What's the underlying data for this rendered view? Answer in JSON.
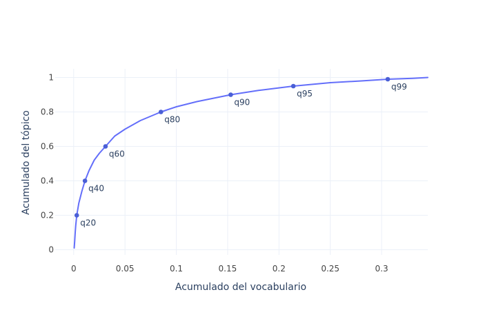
{
  "chart_data": {
    "type": "line",
    "xlabel": "Acumulado del vocabulario",
    "ylabel": "Acumulado del tópico",
    "xlim": [
      -0.018,
      0.345
    ],
    "ylim": [
      -0.03,
      1.05
    ],
    "x_ticks": [
      0,
      0.05,
      0.1,
      0.15,
      0.2,
      0.25,
      0.3
    ],
    "x_tick_labels": [
      "0",
      "0.05",
      "0.1",
      "0.15",
      "0.2",
      "0.25",
      "0.3"
    ],
    "y_ticks": [
      0,
      0.2,
      0.4,
      0.6,
      0.8,
      1
    ],
    "y_tick_labels": [
      "0",
      "0.2",
      "0.4",
      "0.6",
      "0.8",
      "1"
    ],
    "grid": true,
    "colors": {
      "line": "#636efa",
      "marker": "#4a5fd6",
      "grid": "#ebf0f8",
      "text": "#2a3f5f"
    },
    "curve": {
      "x": [
        0.0005,
        0.001,
        0.0015,
        0.002,
        0.003,
        0.005,
        0.008,
        0.011,
        0.015,
        0.02,
        0.025,
        0.031,
        0.04,
        0.05,
        0.065,
        0.085,
        0.1,
        0.12,
        0.153,
        0.18,
        0.214,
        0.25,
        0.28,
        0.306,
        0.33,
        0.345
      ],
      "y": [
        0.01,
        0.05,
        0.1,
        0.14,
        0.2,
        0.27,
        0.34,
        0.4,
        0.46,
        0.52,
        0.56,
        0.6,
        0.66,
        0.7,
        0.75,
        0.8,
        0.83,
        0.86,
        0.9,
        0.925,
        0.95,
        0.97,
        0.98,
        0.99,
        0.995,
        1.0
      ]
    },
    "quantile_points": [
      {
        "label": "q20",
        "x": 0.003,
        "y": 0.2
      },
      {
        "label": "q40",
        "x": 0.011,
        "y": 0.4
      },
      {
        "label": "q60",
        "x": 0.031,
        "y": 0.6
      },
      {
        "label": "q80",
        "x": 0.085,
        "y": 0.8
      },
      {
        "label": "q90",
        "x": 0.153,
        "y": 0.9
      },
      {
        "label": "q95",
        "x": 0.214,
        "y": 0.95
      },
      {
        "label": "q99",
        "x": 0.306,
        "y": 0.99
      }
    ]
  }
}
